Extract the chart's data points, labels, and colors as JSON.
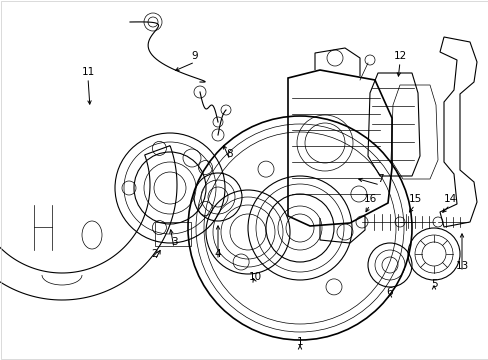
{
  "background_color": "#ffffff",
  "line_color": "#000000",
  "fig_width": 4.89,
  "fig_height": 3.6,
  "dpi": 100,
  "border_color": "#cccccc"
}
